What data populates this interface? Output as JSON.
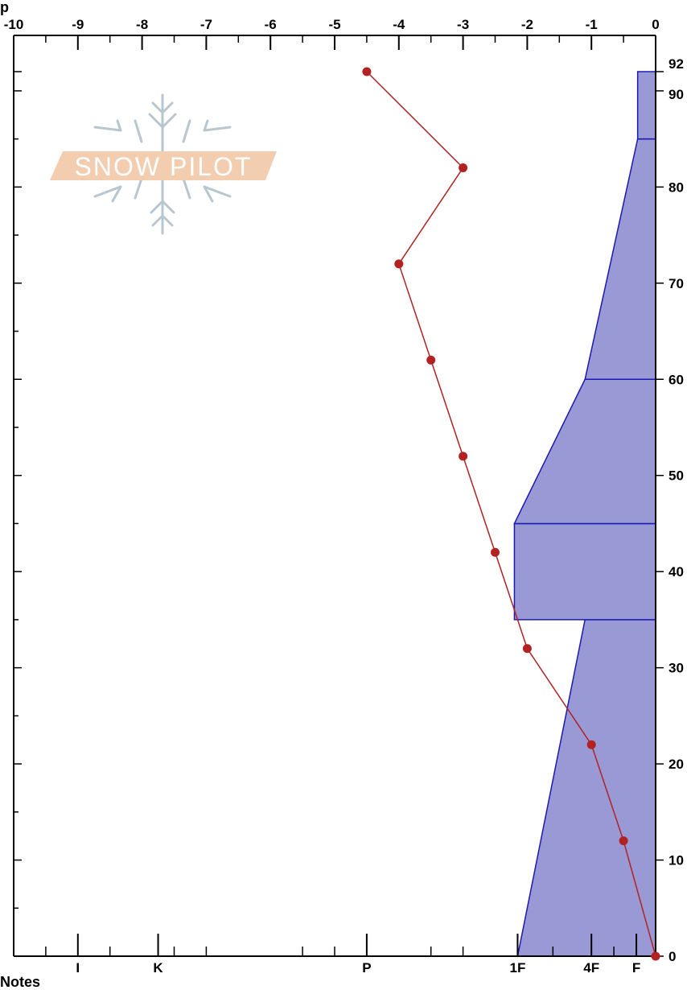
{
  "chart_data": {
    "type": "line",
    "title": "",
    "top_axis": {
      "range": [
        -10,
        0
      ],
      "ticks": [
        "-10",
        "-9",
        "-8",
        "-7",
        "-6",
        "-5",
        "-4",
        "-3",
        "-2",
        "-1",
        "0"
      ]
    },
    "right_axis": {
      "range": [
        0,
        92
      ],
      "ticks": [
        "0",
        "10",
        "20",
        "30",
        "40",
        "50",
        "60",
        "70",
        "80",
        "90",
        "92"
      ]
    },
    "bottom_axis": {
      "hardness_labels": [
        {
          "label": "I",
          "pos": -9.0
        },
        {
          "label": "K",
          "pos": -7.75
        },
        {
          "label": "P",
          "pos": -4.5
        },
        {
          "label": "1F",
          "pos": -2.15
        },
        {
          "label": "4F",
          "pos": -1.0
        },
        {
          "label": "F",
          "pos": -0.3
        }
      ]
    },
    "temperature_series": {
      "color": "#b22222",
      "points": [
        {
          "t": -4.5,
          "h": 92
        },
        {
          "t": -3.0,
          "h": 82
        },
        {
          "t": -4.0,
          "h": 72
        },
        {
          "t": -3.5,
          "h": 62
        },
        {
          "t": -3.0,
          "h": 52
        },
        {
          "t": -2.5,
          "h": 42
        },
        {
          "t": -2.0,
          "h": 32
        },
        {
          "t": -1.0,
          "h": 22
        },
        {
          "t": -0.5,
          "h": 12
        },
        {
          "t": 0,
          "h": 0
        }
      ]
    },
    "hardness_layers": {
      "fill": "#9999d6",
      "stroke": "#1a1ab3",
      "layers": [
        {
          "bottom": 0,
          "top": 35,
          "hardness_bottom": -2.15,
          "hardness_top": -1.1
        },
        {
          "bottom": 35,
          "top": 45,
          "hardness_bottom": -2.2,
          "hardness_top": -2.2
        },
        {
          "bottom": 45,
          "top": 60,
          "hardness_bottom": -2.2,
          "hardness_top": -1.1
        },
        {
          "bottom": 60,
          "top": 85,
          "hardness_bottom": -1.1,
          "hardness_top": -0.28
        },
        {
          "bottom": 85,
          "top": 92,
          "hardness_bottom": -0.28,
          "hardness_top": -0.28
        }
      ]
    }
  },
  "logo": {
    "text": "SNOW PILOT"
  },
  "cut_top_label": "p",
  "cut_bottom_label": "Notes"
}
